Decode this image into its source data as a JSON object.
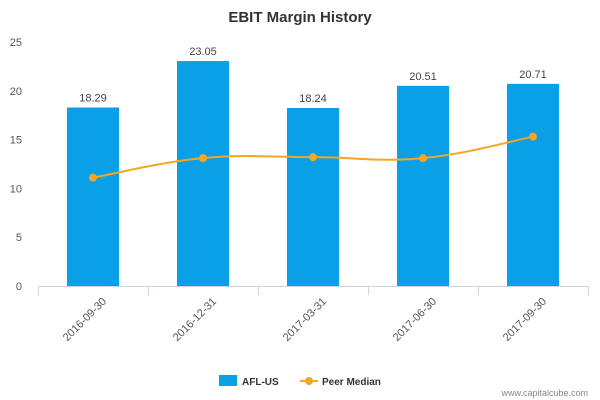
{
  "chart_data": {
    "type": "bar",
    "title": "EBIT Margin History",
    "categories": [
      "2016-09-30",
      "2016-12-31",
      "2017-03-31",
      "2017-06-30",
      "2017-09-30"
    ],
    "series": [
      {
        "name": "AFL-US",
        "type": "bar",
        "color": "#0aa0e8",
        "values": [
          18.29,
          23.05,
          18.24,
          20.51,
          20.71
        ],
        "labels": [
          "18.29",
          "23.05",
          "18.24",
          "20.51",
          "20.71"
        ]
      },
      {
        "name": "Peer Median",
        "type": "line",
        "color": "#f5a623",
        "values": [
          11.1,
          13.1,
          13.2,
          13.1,
          15.3
        ]
      }
    ],
    "y_ticks": [
      "0",
      "5",
      "10",
      "15",
      "20",
      "25"
    ],
    "ylim": [
      0,
      25
    ],
    "grid": false,
    "legend": "bottom-center"
  },
  "credit": "www.capitalcube.com"
}
